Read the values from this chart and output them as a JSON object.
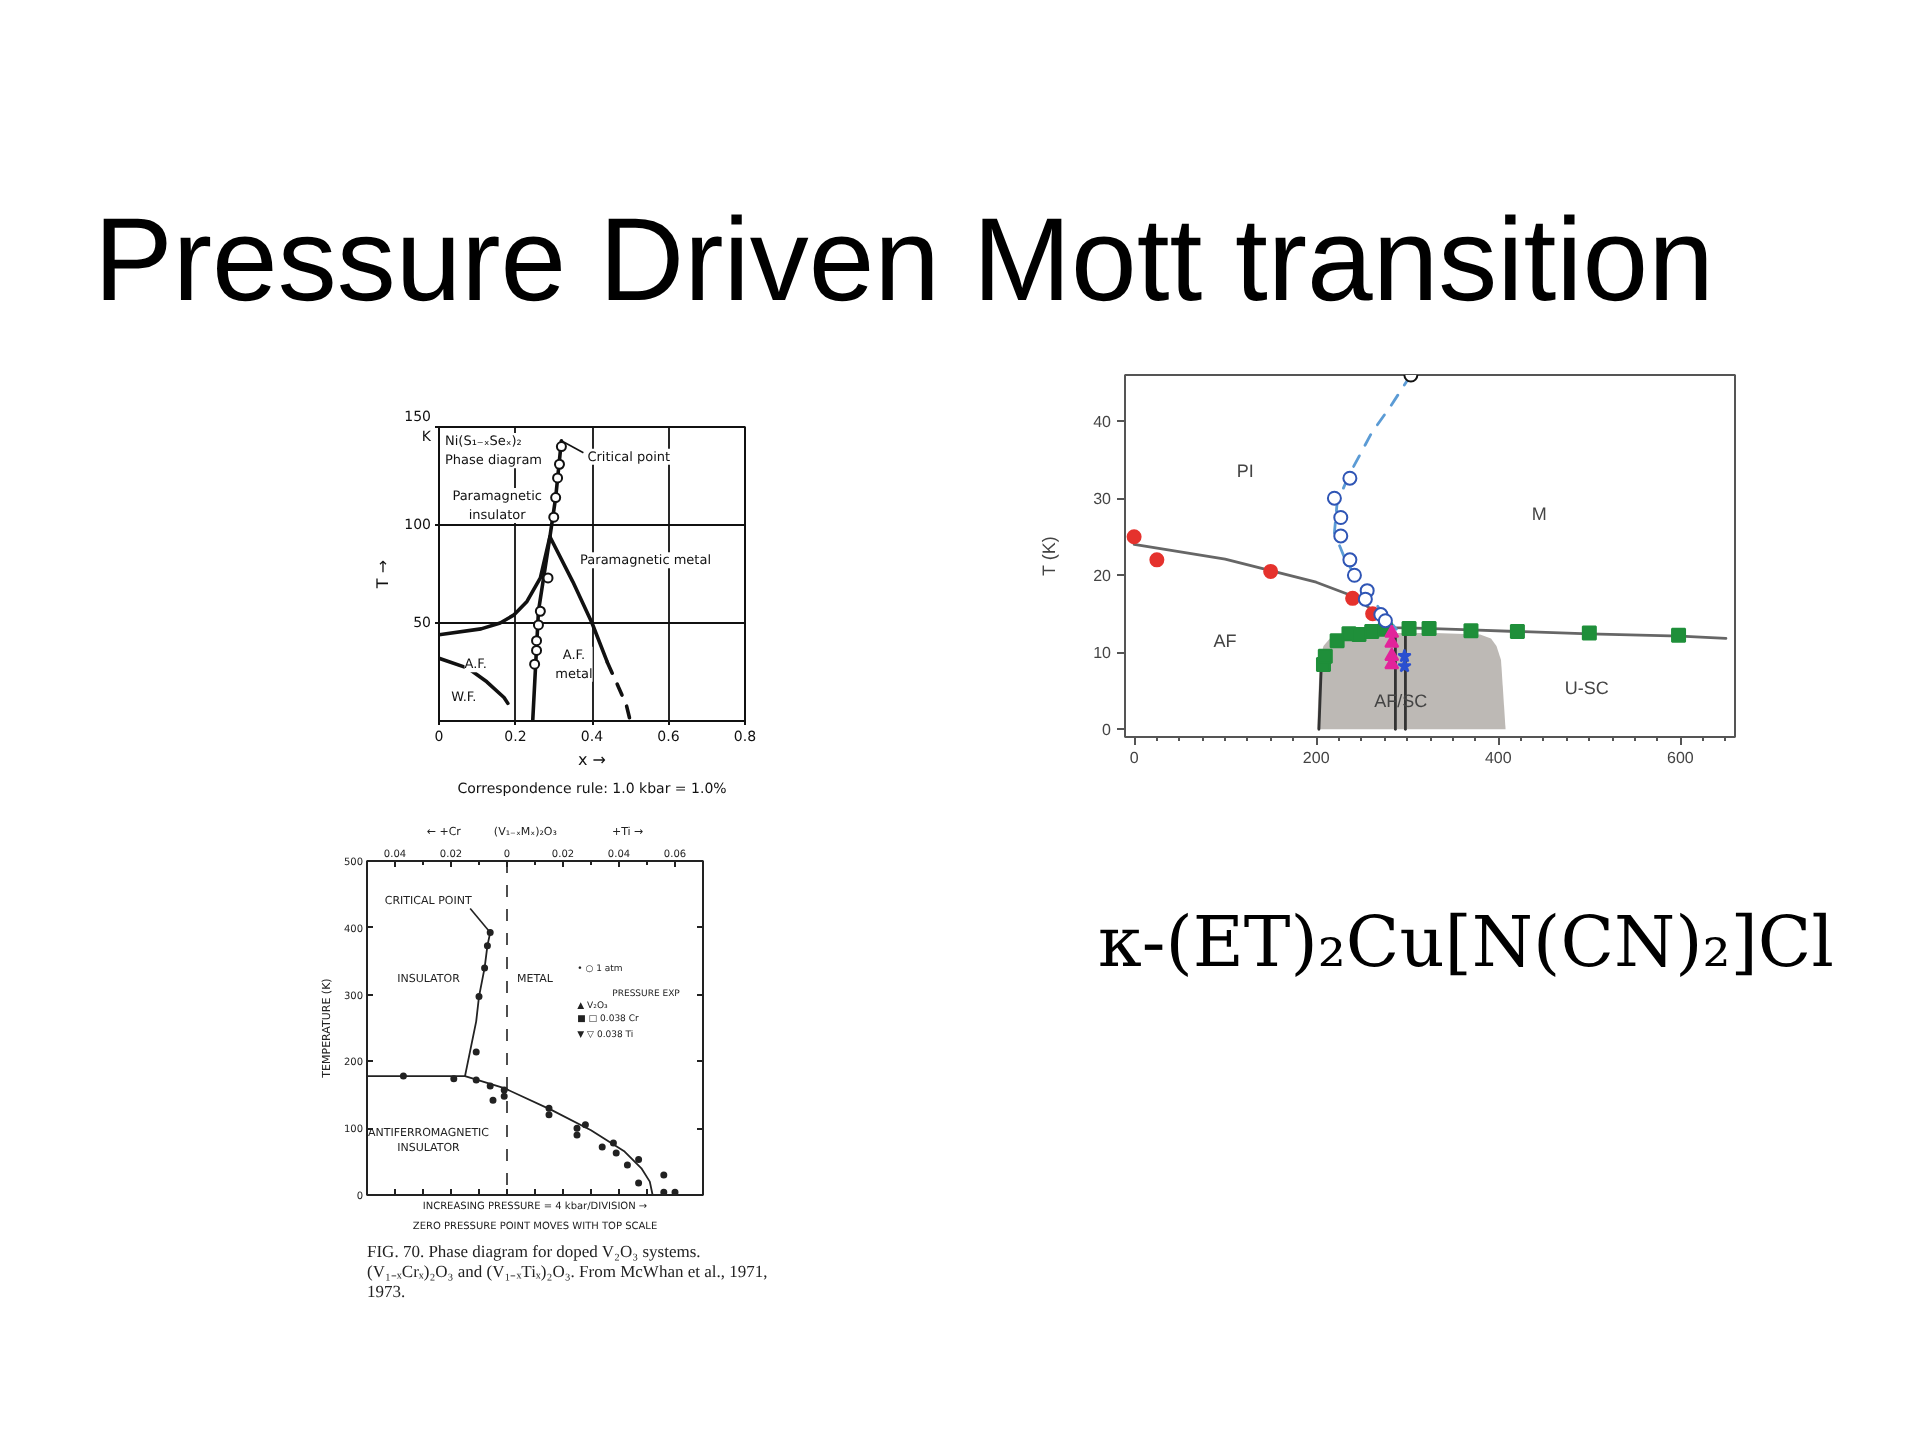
{
  "chart_data": [
    {
      "type": "other",
      "title": "Pressure Driven Mott transition"
    },
    {
      "type": "line",
      "title": "Ni(S₁₋ₓSeₓ)₂\nPhase diagram",
      "xlabel": "x →",
      "ylabel": "T →",
      "xlim": [
        0,
        0.8
      ],
      "ylim": [
        0,
        150
      ],
      "xticks": [
        0,
        0.2,
        0.4,
        0.6,
        0.8
      ],
      "yticks": [
        50,
        100,
        {
          "value": 150,
          "label": "150\nK"
        }
      ],
      "grid": true,
      "series": [
        {
          "type": "line",
          "color": "#111111",
          "x": [
            0.32,
            0.305,
            0.29,
            0.26,
            0.245
          ],
          "values": [
            143,
            114,
            94,
            56,
            0
          ]
        },
        {
          "type": "line",
          "color": "#111111",
          "x": [
            0,
            0.11,
            0.16,
            0.195,
            0.23,
            0.265,
            0.29
          ],
          "values": [
            44,
            47,
            50,
            54,
            61,
            73,
            94
          ]
        },
        {
          "type": "line",
          "color": "#111111",
          "x": [
            0.29,
            0.35,
            0.4,
            0.44
          ],
          "values": [
            94,
            71,
            50,
            30
          ]
        },
        {
          "type": "line",
          "color": "#111111",
          "line_style": "dashed",
          "x": [
            0.44,
            0.47,
            0.49,
            0.5
          ],
          "values": [
            30,
            17,
            8,
            0
          ]
        },
        {
          "type": "line",
          "color": "#111111",
          "x": [
            0,
            0.075,
            0.125,
            0.17,
            0.18
          ],
          "values": [
            32,
            27,
            20,
            12,
            9
          ]
        },
        {
          "type": "scatter",
          "marker": "circle",
          "color": "#111111",
          "x": [
            0.32,
            0.315,
            0.31,
            0.305,
            0.3,
            0.285,
            0.265,
            0.26,
            0.255,
            0.255,
            0.25
          ],
          "values": [
            140,
            131,
            124,
            114,
            104,
            73,
            56,
            49,
            41,
            36,
            29
          ]
        }
      ],
      "annotations": [
        {
          "text": "Critical point",
          "x": 0.32,
          "y": 143
        },
        "Paramagnetic\ninsulator",
        "Paramagnetic metal",
        "A.F.",
        "A.F.\nmetal",
        "W.F.",
        "Correspondence rule: 1.0 kbar = 1.0%"
      ]
    },
    {
      "type": "line",
      "ylabel": "T (K)",
      "xlim": [
        -10,
        660
      ],
      "ylim": [
        -1,
        46
      ],
      "xticks": [
        0,
        {
          "value": 25,
          "label": null
        },
        {
          "value": 50,
          "label": null
        },
        {
          "value": 75,
          "label": null
        },
        {
          "value": 100,
          "label": null
        },
        {
          "value": 125,
          "label": null
        },
        {
          "value": 150,
          "label": null
        },
        {
          "value": 175,
          "label": null
        },
        200,
        {
          "value": 225,
          "label": null
        },
        {
          "value": 250,
          "label": null
        },
        {
          "value": 275,
          "label": null
        },
        {
          "value": 300,
          "label": null
        },
        {
          "value": 325,
          "label": null
        },
        {
          "value": 350,
          "label": null
        },
        {
          "value": 375,
          "label": null
        },
        400,
        {
          "value": 425,
          "label": null
        },
        {
          "value": 450,
          "label": null
        },
        {
          "value": 475,
          "label": null
        },
        {
          "value": 500,
          "label": null
        },
        {
          "value": 525,
          "label": null
        },
        {
          "value": 550,
          "label": null
        },
        {
          "value": 575,
          "label": null
        },
        600,
        {
          "value": 625,
          "label": null
        },
        {
          "value": 650,
          "label": null
        }
      ],
      "yticks": [
        0,
        10,
        20,
        30,
        40
      ],
      "series": [
        {
          "type": "area",
          "color": "#bdb9b5",
          "x": [
            201,
            204,
            208,
            215,
            230,
            280,
            330,
            380,
            392,
            398,
            403,
            408
          ],
          "values": [
            0,
            9,
            10.8,
            11.8,
            12.3,
            12.5,
            12.5,
            12.3,
            11.8,
            10.8,
            9,
            0
          ]
        },
        {
          "type": "line",
          "color": "#333333",
          "x": [
            203,
            206
          ],
          "values": [
            0,
            9.5
          ]
        },
        {
          "type": "line",
          "color": "#333333",
          "x": [
            287,
            287
          ],
          "values": [
            0,
            12.5
          ]
        },
        {
          "type": "line",
          "color": "#333333",
          "x": [
            298,
            298
          ],
          "values": [
            0,
            12.5
          ]
        },
        {
          "type": "line",
          "color": "#666666",
          "x": [
            0,
            100,
            150,
            200,
            240,
            265,
            285,
            320,
            370,
            420,
            500,
            600,
            650
          ],
          "values": [
            24,
            22.1,
            20.6,
            19.1,
            17.3,
            15.2,
            13.2,
            13.1,
            12.9,
            12.7,
            12.4,
            12.1,
            11.8
          ]
        },
        {
          "type": "line",
          "color": "#5b9bd5",
          "line_style": "dashed",
          "x": [
            304,
            282,
            261,
            236,
            223,
            220,
            232,
            254,
            276,
            288
          ],
          "values": [
            46,
            42,
            38.5,
            33,
            29.4,
            25.5,
            22,
            18,
            14.7,
            13
          ]
        },
        {
          "type": "scatter",
          "marker": "circle",
          "color": "#e5322d",
          "x": [
            0,
            25,
            150,
            240,
            262
          ],
          "values": [
            25,
            22,
            20.5,
            17,
            15
          ]
        },
        {
          "type": "scatter",
          "marker": "square",
          "color": "#1f8f3a",
          "x": [
            208,
            210,
            223,
            236,
            247,
            261,
            276,
            302,
            324,
            370,
            421,
            500,
            598
          ],
          "values": [
            8.4,
            9.5,
            11.5,
            12.4,
            12.3,
            12.7,
            13,
            13.1,
            13.1,
            12.8,
            12.7,
            12.5,
            12.2
          ]
        },
        {
          "type": "scatter",
          "marker": "circle",
          "color": "#2f55b5",
          "x": [
            237,
            220,
            227,
            227,
            237,
            242,
            256,
            254,
            271,
            276
          ],
          "values": [
            32.6,
            30,
            27.5,
            25.1,
            22,
            20,
            18,
            16.9,
            14.9,
            14.1
          ]
        },
        {
          "type": "scatter",
          "marker": "triangle",
          "color": "#e2249b",
          "x": [
            283,
            283,
            283,
            283
          ],
          "values": [
            12.5,
            11.2,
            9.5,
            8.4
          ]
        },
        {
          "type": "scatter",
          "marker": "star",
          "color": "#2a4fd0",
          "x": [
            297,
            297
          ],
          "values": [
            9.5,
            8.2
          ]
        },
        {
          "type": "scatter",
          "marker": "circle",
          "color": "#111111",
          "x": [
            304
          ],
          "values": [
            46
          ]
        }
      ],
      "annotations": [
        "PI",
        "M",
        "AF",
        "AF/SC",
        "U-SC"
      ]
    },
    {
      "type": "line",
      "xlabel": "← +Cr   (V₁₋ₓMₓ)₂O₃     +Ti →",
      "ylabel": "TEMPERATURE (K)",
      "xlim": [
        -0.05,
        0.07
      ],
      "ylim": [
        0,
        500
      ],
      "xticks": [
        {
          "value": -0.04,
          "label": "0.04"
        },
        {
          "value": -0.03,
          "label": null
        },
        {
          "value": -0.02,
          "label": "0.02"
        },
        {
          "value": -0.01,
          "label": null
        },
        0,
        {
          "value": 0.01,
          "label": null
        },
        0.02,
        {
          "value": 0.03,
          "label": null
        },
        0.04,
        {
          "value": 0.05,
          "label": null
        },
        0.06
      ],
      "yticks": [
        0,
        100,
        200,
        300,
        400,
        500
      ],
      "ref_lines": [
        {
          "axis": "x",
          "value": 0,
          "line_style": "dashed"
        }
      ],
      "series": [
        {
          "type": "line",
          "color": "#222222",
          "x": [
            -0.015,
            -0.011,
            -0.01,
            -0.008,
            -0.007,
            -0.006
          ],
          "values": [
            178,
            260,
            297,
            340,
            373,
            393
          ]
        },
        {
          "type": "line",
          "color": "#222222",
          "x": [
            -0.05,
            -0.015,
            -0.001,
            0.016,
            0.03,
            0.042,
            0.048,
            0.051,
            0.052
          ],
          "values": [
            178,
            178,
            160,
            127,
            97,
            65,
            40,
            20,
            0
          ]
        },
        {
          "type": "scatter",
          "marker": "circle",
          "color": "#222222",
          "x": [
            -0.037,
            -0.019,
            -0.011,
            -0.01,
            -0.008,
            -0.007,
            -0.006,
            -0.011,
            -0.006,
            -0.005,
            -0.001,
            -0.001,
            0.015,
            0.015,
            0.025,
            0.028,
            0.025,
            0.034,
            0.038,
            0.039,
            0.043,
            0.047,
            0.047,
            0.056,
            0.056,
            0.06
          ],
          "values": [
            178,
            174,
            214,
            297,
            340,
            373,
            393,
            172,
            163,
            142,
            157,
            148,
            130,
            120,
            100,
            105,
            90,
            72,
            78,
            63,
            45,
            53,
            18,
            30,
            4,
            4
          ]
        }
      ],
      "annotations": [
        {
          "text": "CRITICAL POINT",
          "x": -0.006,
          "y": 393
        },
        "INSULATOR",
        "METAL",
        "• ○ 1 atm",
        "PRESSURE EXP",
        "▲ V₂O₃",
        "■ □ 0.038 Cr",
        "▼ ▽ 0.038 Ti",
        "ANTIFERROMAGNETIC\nINSULATOR",
        "INCREASING PRESSURE = 4 kbar/DIVISION →",
        "ZERO PRESSURE POINT MOVES WITH TOP SCALE",
        "FIG. 70. Phase diagram for doped V₂O₃ systems.\n(V₁₋ₓCrₓ)₂O₃ and (V₁₋ₓTiₓ)₂O₃. From McWhan et al., 1971,\n1973."
      ]
    },
    {
      "type": "other",
      "title": "κ-(ET)₂Cu[N(CN)₂]Cl"
    }
  ]
}
